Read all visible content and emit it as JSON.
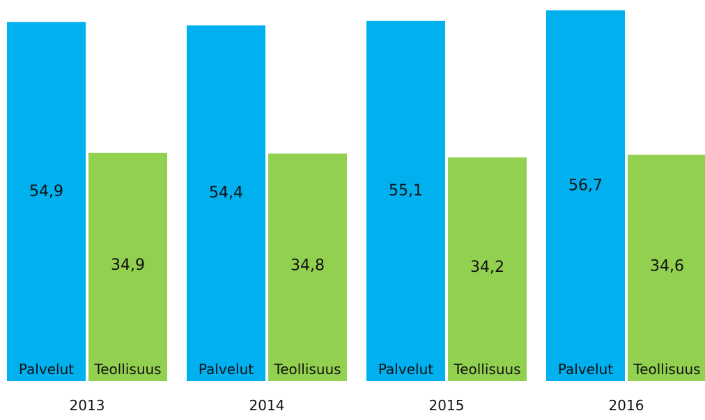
{
  "chart_data": {
    "type": "bar",
    "categories": [
      "2013",
      "2014",
      "2015",
      "2016"
    ],
    "series": [
      {
        "name": "Palvelut",
        "color": "#00b0ef",
        "values": [
          54.9,
          54.4,
          55.1,
          56.7
        ],
        "value_labels": [
          "54,9",
          "54,4",
          "55,1",
          "56,7"
        ]
      },
      {
        "name": "Teollisuus",
        "color": "#92d050",
        "values": [
          34.9,
          34.8,
          34.2,
          34.6
        ],
        "value_labels": [
          "34,9",
          "34,8",
          "34,2",
          "34,6"
        ]
      }
    ],
    "title": "",
    "xlabel": "",
    "ylabel": "",
    "ylim": [
      0,
      57
    ],
    "grid": false,
    "legend": "none"
  }
}
